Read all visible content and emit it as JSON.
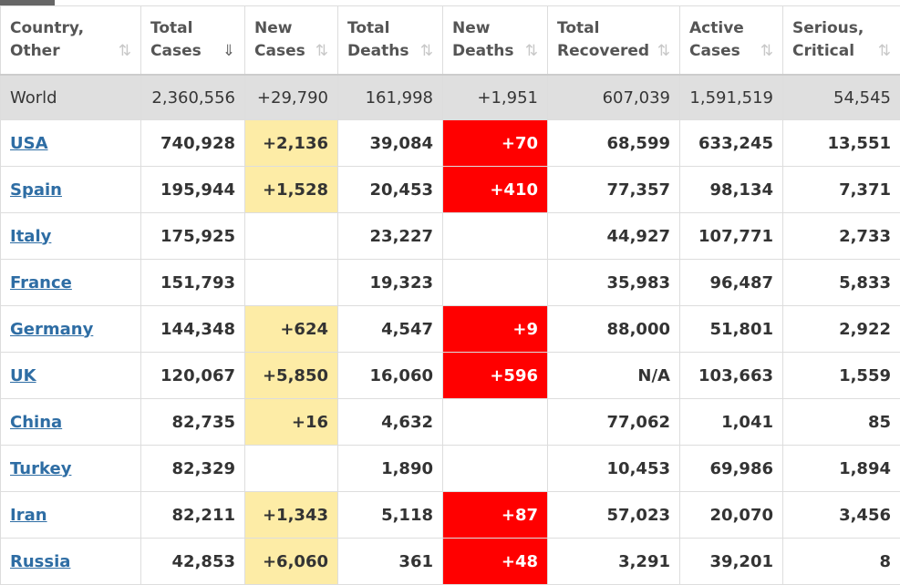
{
  "columns": [
    {
      "line1": "Country,",
      "line2": "Other",
      "sort_icon": "sort-icon",
      "active": false
    },
    {
      "line1": "Total",
      "line2": "Cases",
      "sort_icon": "sort-desc-icon",
      "active": true
    },
    {
      "line1": "New",
      "line2": "Cases",
      "sort_icon": "sort-icon",
      "active": false
    },
    {
      "line1": "Total",
      "line2": "Deaths",
      "sort_icon": "sort-icon",
      "active": false
    },
    {
      "line1": "New",
      "line2": "Deaths",
      "sort_icon": "sort-icon",
      "active": false
    },
    {
      "line1": "Total",
      "line2": "Recovered",
      "sort_icon": "sort-icon",
      "active": false
    },
    {
      "line1": "Active",
      "line2": "Cases",
      "sort_icon": "sort-icon",
      "active": false
    },
    {
      "line1": "Serious,",
      "line2": "Critical",
      "sort_icon": "sort-icon",
      "active": false
    }
  ],
  "world": {
    "country": "World",
    "total_cases": "2,360,556",
    "new_cases": "+29,790",
    "total_deaths": "161,998",
    "new_deaths": "+1,951",
    "total_recovered": "607,039",
    "active_cases": "1,591,519",
    "serious_critical": "54,545"
  },
  "rows": [
    {
      "country": "USA",
      "total_cases": "740,928",
      "new_cases": "+2,136",
      "total_deaths": "39,084",
      "new_deaths": "+70",
      "total_recovered": "68,599",
      "active_cases": "633,245",
      "serious_critical": "13,551"
    },
    {
      "country": "Spain",
      "total_cases": "195,944",
      "new_cases": "+1,528",
      "total_deaths": "20,453",
      "new_deaths": "+410",
      "total_recovered": "77,357",
      "active_cases": "98,134",
      "serious_critical": "7,371"
    },
    {
      "country": "Italy",
      "total_cases": "175,925",
      "new_cases": "",
      "total_deaths": "23,227",
      "new_deaths": "",
      "total_recovered": "44,927",
      "active_cases": "107,771",
      "serious_critical": "2,733"
    },
    {
      "country": "France",
      "total_cases": "151,793",
      "new_cases": "",
      "total_deaths": "19,323",
      "new_deaths": "",
      "total_recovered": "35,983",
      "active_cases": "96,487",
      "serious_critical": "5,833"
    },
    {
      "country": "Germany",
      "total_cases": "144,348",
      "new_cases": "+624",
      "total_deaths": "4,547",
      "new_deaths": "+9",
      "total_recovered": "88,000",
      "active_cases": "51,801",
      "serious_critical": "2,922"
    },
    {
      "country": "UK",
      "total_cases": "120,067",
      "new_cases": "+5,850",
      "total_deaths": "16,060",
      "new_deaths": "+596",
      "total_recovered": "N/A",
      "active_cases": "103,663",
      "serious_critical": "1,559"
    },
    {
      "country": "China",
      "total_cases": "82,735",
      "new_cases": "+16",
      "total_deaths": "4,632",
      "new_deaths": "",
      "total_recovered": "77,062",
      "active_cases": "1,041",
      "serious_critical": "85"
    },
    {
      "country": "Turkey",
      "total_cases": "82,329",
      "new_cases": "",
      "total_deaths": "1,890",
      "new_deaths": "",
      "total_recovered": "10,453",
      "active_cases": "69,986",
      "serious_critical": "1,894"
    },
    {
      "country": "Iran",
      "total_cases": "82,211",
      "new_cases": "+1,343",
      "total_deaths": "5,118",
      "new_deaths": "+87",
      "total_recovered": "57,023",
      "active_cases": "20,070",
      "serious_critical": "3,456"
    },
    {
      "country": "Russia",
      "total_cases": "42,853",
      "new_cases": "+6,060",
      "total_deaths": "361",
      "new_deaths": "+48",
      "total_recovered": "3,291",
      "active_cases": "39,201",
      "serious_critical": "8"
    }
  ],
  "colors": {
    "new_cases_highlight": "#fdeca6",
    "new_deaths_highlight": "#ff0000",
    "link": "#2e6da4",
    "world_row": "#dfdfdf"
  }
}
